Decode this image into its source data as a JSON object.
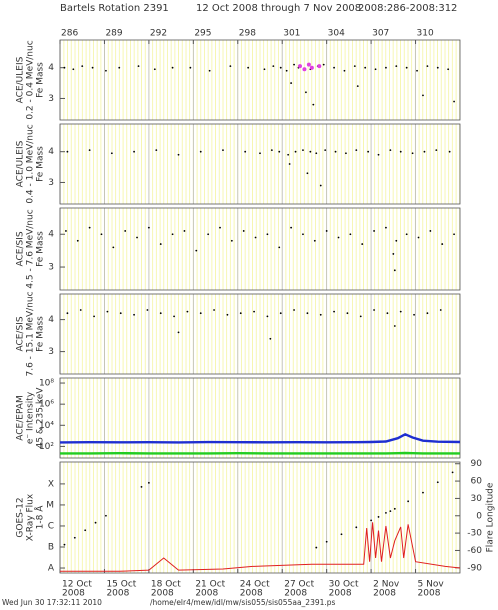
{
  "header": {
    "rotation": "Bartels Rotation 2391",
    "range": "12 Oct 2008 through 7 Nov 2008",
    "doy": "2008:286-2008:312"
  },
  "chart_data": [
    {
      "type": "scatter",
      "ylabel": [
        "ACE/ULEIS",
        "0.2 - 0.4 MeV/nuc",
        "Fe Mass"
      ],
      "xlim": [
        286,
        313
      ],
      "ylim": [
        2.3,
        4.9
      ],
      "yticks": [
        3,
        4
      ],
      "x2ticks": [
        286,
        289,
        292,
        295,
        298,
        301,
        304,
        307,
        310
      ],
      "series": [
        {
          "color": "#000000",
          "x": [
            286.3,
            286.9,
            287.5,
            288.2,
            289.1,
            290.0,
            291.3,
            292.4,
            293.6,
            294.8,
            296.1,
            297.5,
            298.7,
            299.8,
            300.4,
            300.9,
            301.3,
            301.8,
            302.1,
            302.9,
            303.4,
            303.8,
            304.5,
            305.2,
            305.9,
            306.6,
            307.3,
            308.0,
            308.7,
            309.4,
            310.1,
            310.8,
            311.5,
            312.2,
            302.6,
            303.1,
            301.6,
            306.1,
            310.5,
            312.6
          ],
          "values": [
            4.0,
            3.95,
            4.05,
            4.0,
            3.9,
            4.0,
            4.05,
            3.95,
            4.0,
            4.0,
            3.9,
            4.05,
            4.0,
            3.95,
            4.05,
            4.0,
            3.9,
            4.1,
            4.0,
            3.95,
            4.05,
            4.1,
            4.0,
            3.9,
            4.05,
            4.0,
            3.95,
            4.0,
            4.05,
            4.0,
            3.9,
            4.05,
            4.0,
            3.95,
            3.2,
            2.8,
            3.5,
            3.4,
            3.1,
            2.9
          ]
        },
        {
          "color": "#e040e0",
          "x": [
            302.2,
            302.5,
            302.8,
            303.0,
            303.5
          ],
          "values": [
            4.05,
            3.95,
            4.1,
            4.0,
            4.05
          ]
        }
      ]
    },
    {
      "type": "scatter",
      "ylabel": [
        "ACE/ULEIS",
        "0.4 - 1.0 MeV/nuc",
        "Fe Mass"
      ],
      "xlim": [
        286,
        313
      ],
      "ylim": [
        2.3,
        4.9
      ],
      "yticks": [
        3,
        4
      ],
      "series": [
        {
          "color": "#000000",
          "x": [
            286.5,
            288.0,
            289.5,
            291.0,
            292.5,
            294.0,
            295.5,
            297.0,
            298.5,
            299.5,
            300.3,
            300.8,
            301.4,
            301.9,
            302.4,
            302.9,
            303.3,
            303.9,
            304.6,
            305.3,
            306.0,
            306.8,
            307.5,
            308.3,
            309.0,
            309.8,
            310.6,
            311.4,
            312.3,
            302.7,
            303.6,
            301.5
          ],
          "values": [
            4.0,
            4.05,
            3.95,
            4.0,
            4.05,
            3.9,
            4.0,
            4.05,
            4.0,
            3.95,
            4.05,
            4.0,
            3.9,
            4.0,
            4.05,
            4.0,
            3.95,
            4.05,
            4.0,
            3.95,
            4.05,
            4.0,
            3.9,
            4.05,
            4.0,
            3.95,
            4.0,
            4.05,
            4.0,
            3.3,
            2.9,
            3.6
          ]
        }
      ]
    },
    {
      "type": "scatter",
      "ylabel": [
        "ACE/SIS",
        "4.5 - 7.6 MeV/nuc",
        "Fe Mass"
      ],
      "xlim": [
        286,
        313
      ],
      "ylim": [
        2.3,
        4.8
      ],
      "yticks": [
        3,
        4
      ],
      "series": [
        {
          "color": "#000000",
          "x": [
            286.4,
            287.2,
            288.0,
            288.8,
            289.6,
            290.4,
            291.2,
            292.0,
            292.8,
            293.6,
            294.4,
            295.2,
            296.0,
            296.8,
            297.6,
            298.4,
            299.2,
            300.0,
            300.8,
            301.6,
            302.4,
            303.2,
            304.0,
            304.8,
            305.6,
            306.4,
            307.2,
            308.0,
            308.5,
            308.6,
            308.7,
            309.4,
            310.2,
            311.0,
            311.8,
            312.6
          ],
          "values": [
            4.1,
            3.8,
            4.2,
            4.0,
            3.6,
            4.1,
            3.9,
            4.2,
            3.7,
            4.0,
            4.1,
            3.5,
            4.0,
            4.2,
            3.8,
            4.1,
            3.9,
            4.0,
            3.6,
            4.2,
            4.0,
            3.8,
            4.1,
            3.9,
            4.0,
            3.7,
            4.1,
            4.2,
            3.4,
            2.9,
            3.8,
            4.0,
            3.9,
            4.1,
            3.7,
            4.0
          ]
        }
      ]
    },
    {
      "type": "scatter",
      "ylabel": [
        "ACE/SIS",
        "7.6 - 15.1 MeV/nuc",
        "Fe Mass"
      ],
      "xlim": [
        286,
        313
      ],
      "ylim": [
        2.3,
        4.8
      ],
      "yticks": [
        3,
        4
      ],
      "series": [
        {
          "color": "#000000",
          "x": [
            286.5,
            287.4,
            288.3,
            289.2,
            290.1,
            291.0,
            291.9,
            292.8,
            293.7,
            294.6,
            295.5,
            296.4,
            297.3,
            298.2,
            299.1,
            300.0,
            300.9,
            301.8,
            302.7,
            303.6,
            304.5,
            305.4,
            306.3,
            307.2,
            308.1,
            309.0,
            309.9,
            310.8,
            311.7,
            308.6,
            294.0,
            300.2
          ],
          "values": [
            4.2,
            4.3,
            4.1,
            4.25,
            4.2,
            4.15,
            4.3,
            4.2,
            4.1,
            4.25,
            4.2,
            4.3,
            4.15,
            4.2,
            4.25,
            4.1,
            4.2,
            4.3,
            4.2,
            4.15,
            4.25,
            4.2,
            4.1,
            4.3,
            4.2,
            4.25,
            4.15,
            4.2,
            4.3,
            3.8,
            3.6,
            3.4
          ]
        }
      ]
    },
    {
      "type": "line",
      "ylabel": [
        "ACE/EPAM",
        "e⁻ Intensity",
        "45 & 235 keV"
      ],
      "xlim": [
        286,
        313
      ],
      "log": true,
      "ylim": [
        8,
        300000000
      ],
      "yticks": [
        {
          "value": 100,
          "label": "10²"
        },
        {
          "value": 10000,
          "label": "10⁴"
        },
        {
          "value": 1000000,
          "label": "10⁶"
        },
        {
          "value": 100000000,
          "label": "10⁸"
        }
      ],
      "series": [
        {
          "color": "#1f2fd0",
          "x": [
            286,
            288,
            290,
            292,
            294,
            296,
            298,
            300,
            302,
            304,
            306,
            307,
            308,
            308.8,
            309.3,
            309.8,
            310.5,
            311.5,
            313
          ],
          "values": [
            240,
            250,
            245,
            250,
            240,
            255,
            250,
            245,
            250,
            245,
            250,
            260,
            290,
            600,
            1400,
            700,
            350,
            280,
            260
          ]
        },
        {
          "color": "#22cc22",
          "x": [
            286,
            288,
            290,
            292,
            294,
            296,
            298,
            300,
            302,
            304,
            306,
            307,
            308,
            308.8,
            309.3,
            309.8,
            310.5,
            311.5,
            313
          ],
          "values": [
            22,
            22,
            23,
            22,
            22,
            22,
            23,
            22,
            22,
            22,
            22,
            22,
            22,
            23,
            24,
            23,
            22,
            22,
            22
          ]
        }
      ]
    },
    {
      "type": "line",
      "ylabel": [
        "GOES-12",
        "X-Ray Flux",
        "1-8 Å"
      ],
      "y2label": "Flare Longitude",
      "xlim": [
        286,
        313
      ],
      "log": true,
      "ylim": [
        5.8e-09,
        0.0011
      ],
      "yticks": [
        {
          "value": 1e-08,
          "label": "A"
        },
        {
          "value": 1e-07,
          "label": "B"
        },
        {
          "value": 1e-06,
          "label": "C"
        },
        {
          "value": 1e-05,
          "label": "M"
        },
        {
          "value": 0.0001,
          "label": "X"
        }
      ],
      "y2lim": [
        -99,
        93
      ],
      "y2ticks": [
        90,
        60,
        30,
        0,
        -30,
        -60,
        -90
      ],
      "xticks": [
        {
          "value": 286,
          "label": "12 Oct",
          "year": "2008"
        },
        {
          "value": 289,
          "label": "15 Oct",
          "year": "2008"
        },
        {
          "value": 292,
          "label": "18 Oct",
          "year": "2008"
        },
        {
          "value": 295,
          "label": "21 Oct",
          "year": "2008"
        },
        {
          "value": 298,
          "label": "24 Oct",
          "year": "2008"
        },
        {
          "value": 301,
          "label": "27 Oct",
          "year": "2008"
        },
        {
          "value": 304,
          "label": "30 Oct",
          "year": "2008"
        },
        {
          "value": 307,
          "label": "2 Nov",
          "year": "2008"
        },
        {
          "value": 310,
          "label": "5 Nov",
          "year": "2008"
        }
      ],
      "series": [
        {
          "color": "#e02020",
          "x": [
            286,
            290,
            292,
            293,
            294,
            297,
            299,
            303,
            306.5,
            306.7,
            306.9,
            307.1,
            307.3,
            307.5,
            307.7,
            308.0,
            308.3,
            308.6,
            309.0,
            309.2,
            309.5,
            310,
            312,
            313
          ],
          "values": [
            7e-09,
            7e-09,
            8e-09,
            3e-08,
            8e-09,
            9e-09,
            1.2e-08,
            1.5e-08,
            1.5e-08,
            8e-07,
            2e-08,
            1.5e-06,
            3e-08,
            6e-07,
            2e-08,
            1e-06,
            3e-08,
            2e-07,
            9e-07,
            3e-08,
            1.2e-06,
            2e-08,
            1.2e-08,
            1e-08
          ]
        },
        {
          "type": "scatter",
          "axis": "y2",
          "color": "#000000",
          "x": [
            286.3,
            287,
            287.7,
            288.4,
            289.1,
            291.5,
            292.0,
            303.3,
            304,
            305,
            306,
            307,
            307.5,
            308,
            308.3,
            308.6,
            309.5,
            310.5,
            311.5,
            312.5
          ],
          "values": [
            -50,
            -38,
            -25,
            -12,
            0,
            50,
            57,
            -55,
            -45,
            -32,
            -20,
            -8,
            -2,
            5,
            8,
            12,
            25,
            40,
            58,
            75
          ]
        }
      ]
    }
  ],
  "footer": {
    "date": "Wed Jun 30 17:32:11 2010",
    "path": "/home/elr4/mew/idl/mw/sis055/sis055aa_2391.ps"
  }
}
